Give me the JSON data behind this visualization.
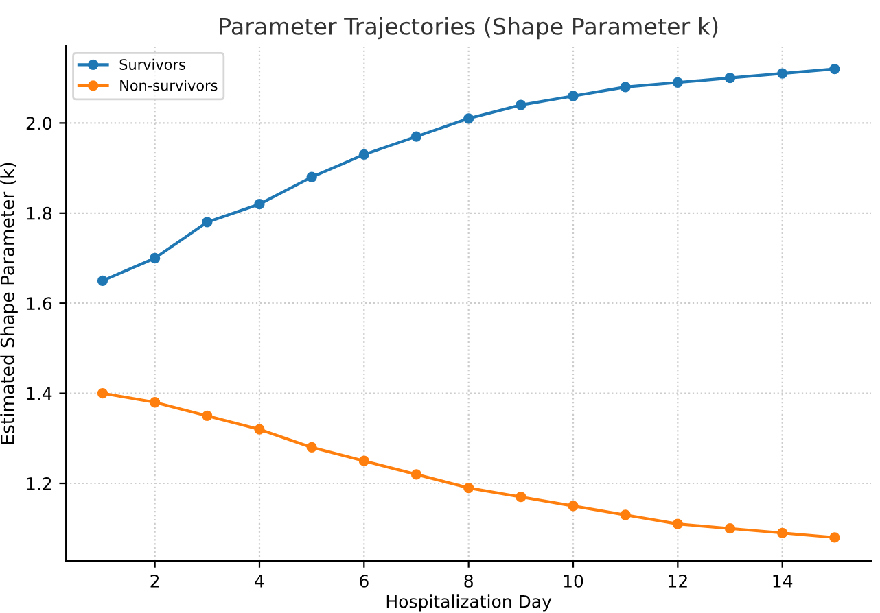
{
  "chart_data": {
    "type": "line",
    "title": "Parameter Trajectories (Shape Parameter k)",
    "xlabel": "Hospitalization Day",
    "ylabel": "Estimated Shape Parameter (k)",
    "x": [
      1,
      2,
      3,
      4,
      5,
      6,
      7,
      8,
      9,
      10,
      11,
      12,
      13,
      14,
      15
    ],
    "series": [
      {
        "name": "Survivors",
        "color": "#1f77b4",
        "values": [
          1.65,
          1.7,
          1.78,
          1.82,
          1.88,
          1.93,
          1.97,
          2.01,
          2.04,
          2.06,
          2.08,
          2.09,
          2.1,
          2.11,
          2.12
        ]
      },
      {
        "name": "Non-survivors",
        "color": "#ff7f0e",
        "values": [
          1.4,
          1.38,
          1.35,
          1.32,
          1.28,
          1.25,
          1.22,
          1.19,
          1.17,
          1.15,
          1.13,
          1.11,
          1.1,
          1.09,
          1.08
        ]
      }
    ],
    "xlim": [
      0.3,
      15.7
    ],
    "ylim": [
      1.028,
      2.171
    ],
    "xticks": [
      2,
      4,
      6,
      8,
      10,
      12,
      14
    ],
    "yticks": [
      1.2,
      1.4,
      1.6,
      1.8,
      {
        "value": 2.0,
        "label": "2.0"
      }
    ],
    "grid": true,
    "legend": "top left",
    "marker": "circle",
    "line_style": "solid"
  }
}
